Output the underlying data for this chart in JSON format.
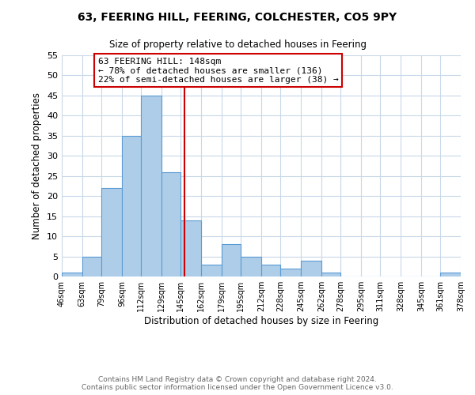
{
  "title": "63, FEERING HILL, FEERING, COLCHESTER, CO5 9PY",
  "subtitle": "Size of property relative to detached houses in Feering",
  "xlabel": "Distribution of detached houses by size in Feering",
  "ylabel": "Number of detached properties",
  "annotation_title": "63 FEERING HILL: 148sqm",
  "annotation_line1": "← 78% of detached houses are smaller (136)",
  "annotation_line2": "22% of semi-detached houses are larger (38) →",
  "property_line_x": 148,
  "bin_edges": [
    46,
    63,
    79,
    96,
    112,
    129,
    145,
    162,
    179,
    195,
    212,
    228,
    245,
    262,
    278,
    295,
    311,
    328,
    345,
    361,
    378
  ],
  "bin_counts": [
    1,
    5,
    22,
    35,
    45,
    26,
    14,
    3,
    8,
    5,
    3,
    2,
    4,
    1,
    0,
    0,
    0,
    0,
    0,
    1
  ],
  "bar_color": "#aecde8",
  "bar_edge_color": "#5b9bd5",
  "property_line_color": "#cc0000",
  "annotation_box_edge_color": "#cc0000",
  "annotation_box_face_color": "#ffffff",
  "ylim": [
    0,
    55
  ],
  "yticks": [
    0,
    5,
    10,
    15,
    20,
    25,
    30,
    35,
    40,
    45,
    50,
    55
  ],
  "footer_line1": "Contains HM Land Registry data © Crown copyright and database right 2024.",
  "footer_line2": "Contains public sector information licensed under the Open Government Licence v3.0.",
  "background_color": "#ffffff",
  "grid_color": "#c8d8e8"
}
